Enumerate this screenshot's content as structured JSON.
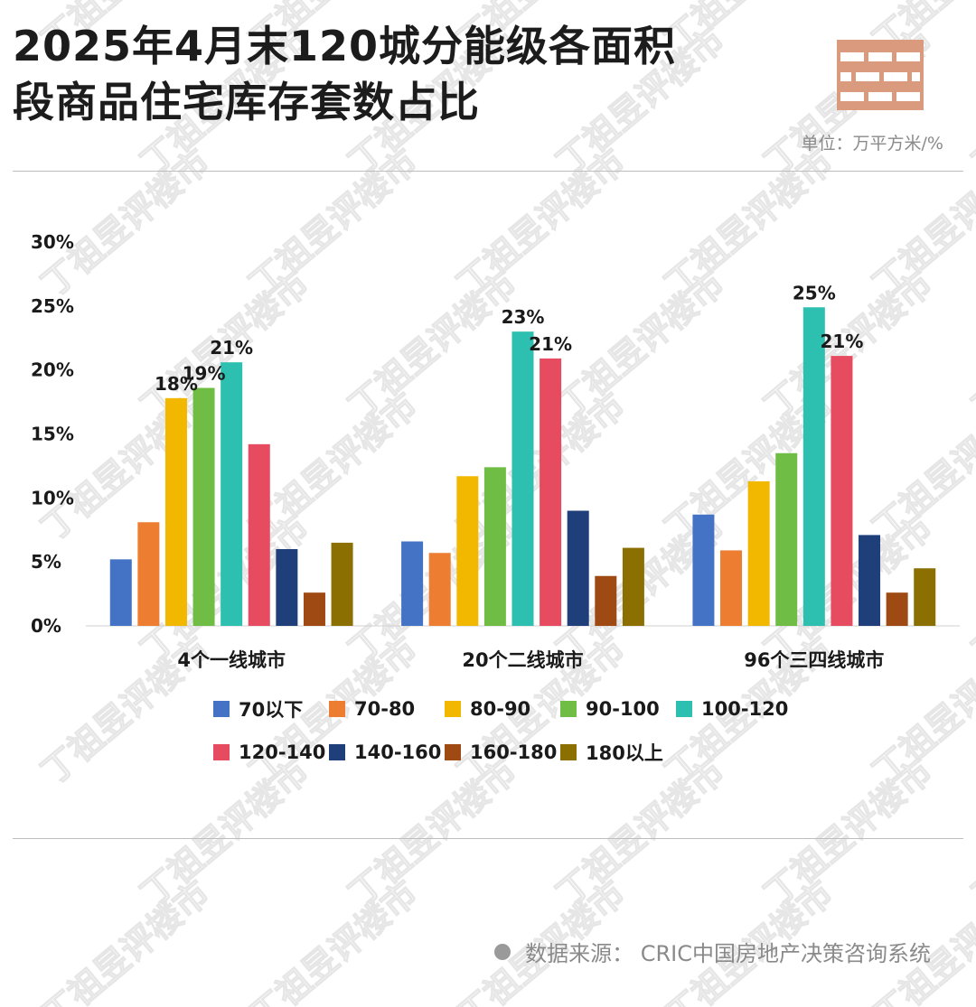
{
  "header": {
    "title_line1": "2025年4月末120城分能级各面积",
    "title_line2": "段商品住宅库存套数占比",
    "unit": "单位：万平方米/%"
  },
  "footer": {
    "source": "数据来源：  CRIC中国房地产决策咨询系统"
  },
  "watermark_text": "丁祖昱评楼市",
  "chart_data": {
    "type": "bar",
    "title": "2025年4月末120城分能级各面积段商品住宅库存套数占比",
    "xlabel": "",
    "ylabel": "",
    "ylim": [
      0,
      30
    ],
    "yticks": [
      "0%",
      "5%",
      "10%",
      "15%",
      "20%",
      "25%",
      "30%"
    ],
    "categories": [
      "4个一线城市",
      "20个二线城市",
      "96个三四线城市"
    ],
    "legend_position": "bottom",
    "series": [
      {
        "name": "70以下",
        "color": "#4472C4",
        "values": [
          5.2,
          6.6,
          8.7
        ]
      },
      {
        "name": "70-80",
        "color": "#ED7D31",
        "values": [
          8.1,
          5.7,
          5.9
        ]
      },
      {
        "name": "80-90",
        "color": "#F2B800",
        "values": [
          17.8,
          11.7,
          11.3
        ]
      },
      {
        "name": "90-100",
        "color": "#70BD45",
        "values": [
          18.6,
          12.4,
          13.5
        ]
      },
      {
        "name": "100-120",
        "color": "#2DBFB0",
        "values": [
          20.6,
          23.0,
          24.9
        ]
      },
      {
        "name": "120-140",
        "color": "#E64B5F",
        "values": [
          14.2,
          20.9,
          21.1
        ]
      },
      {
        "name": "140-160",
        "color": "#1F3F7A",
        "values": [
          6.0,
          9.0,
          7.1
        ]
      },
      {
        "name": "160-180",
        "color": "#9E4A12",
        "values": [
          2.6,
          3.9,
          2.6
        ]
      },
      {
        "name": "180以上",
        "color": "#8B6F00",
        "values": [
          6.5,
          6.1,
          4.5
        ]
      }
    ],
    "data_labels": [
      {
        "category": 0,
        "series": 2,
        "text": "18%"
      },
      {
        "category": 0,
        "series": 3,
        "text": "19%"
      },
      {
        "category": 0,
        "series": 4,
        "text": "21%"
      },
      {
        "category": 1,
        "series": 4,
        "text": "23%"
      },
      {
        "category": 1,
        "series": 5,
        "text": "21%"
      },
      {
        "category": 2,
        "series": 4,
        "text": "25%"
      },
      {
        "category": 2,
        "series": 5,
        "text": "21%"
      }
    ]
  }
}
